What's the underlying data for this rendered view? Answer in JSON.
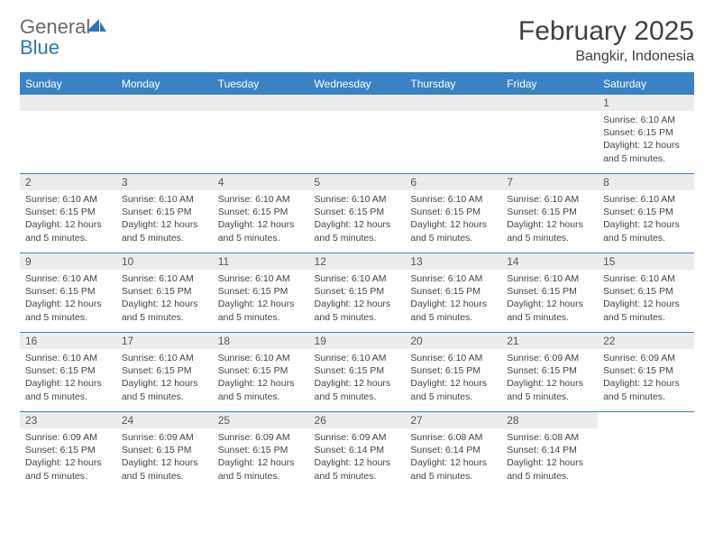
{
  "brand": {
    "word1": "General",
    "word2": "Blue",
    "word1_color": "#6a6a6a",
    "word2_color": "#2f77bb",
    "icon_color": "#2f77bb"
  },
  "title": "February 2025",
  "location": "Bangkir, Indonesia",
  "colors": {
    "header_bg": "#3b82c4",
    "header_text": "#ffffff",
    "daynum_bg": "#ececec",
    "border": "#3b82c4",
    "body_text": "#444444"
  },
  "weekdays": [
    "Sunday",
    "Monday",
    "Tuesday",
    "Wednesday",
    "Thursday",
    "Friday",
    "Saturday"
  ],
  "weeks": [
    [
      {
        "empty": true
      },
      {
        "empty": true
      },
      {
        "empty": true
      },
      {
        "empty": true
      },
      {
        "empty": true
      },
      {
        "empty": true
      },
      {
        "num": "1",
        "sunrise": "Sunrise: 6:10 AM",
        "sunset": "Sunset: 6:15 PM",
        "daylight1": "Daylight: 12 hours",
        "daylight2": "and 5 minutes."
      }
    ],
    [
      {
        "num": "2",
        "sunrise": "Sunrise: 6:10 AM",
        "sunset": "Sunset: 6:15 PM",
        "daylight1": "Daylight: 12 hours",
        "daylight2": "and 5 minutes."
      },
      {
        "num": "3",
        "sunrise": "Sunrise: 6:10 AM",
        "sunset": "Sunset: 6:15 PM",
        "daylight1": "Daylight: 12 hours",
        "daylight2": "and 5 minutes."
      },
      {
        "num": "4",
        "sunrise": "Sunrise: 6:10 AM",
        "sunset": "Sunset: 6:15 PM",
        "daylight1": "Daylight: 12 hours",
        "daylight2": "and 5 minutes."
      },
      {
        "num": "5",
        "sunrise": "Sunrise: 6:10 AM",
        "sunset": "Sunset: 6:15 PM",
        "daylight1": "Daylight: 12 hours",
        "daylight2": "and 5 minutes."
      },
      {
        "num": "6",
        "sunrise": "Sunrise: 6:10 AM",
        "sunset": "Sunset: 6:15 PM",
        "daylight1": "Daylight: 12 hours",
        "daylight2": "and 5 minutes."
      },
      {
        "num": "7",
        "sunrise": "Sunrise: 6:10 AM",
        "sunset": "Sunset: 6:15 PM",
        "daylight1": "Daylight: 12 hours",
        "daylight2": "and 5 minutes."
      },
      {
        "num": "8",
        "sunrise": "Sunrise: 6:10 AM",
        "sunset": "Sunset: 6:15 PM",
        "daylight1": "Daylight: 12 hours",
        "daylight2": "and 5 minutes."
      }
    ],
    [
      {
        "num": "9",
        "sunrise": "Sunrise: 6:10 AM",
        "sunset": "Sunset: 6:15 PM",
        "daylight1": "Daylight: 12 hours",
        "daylight2": "and 5 minutes."
      },
      {
        "num": "10",
        "sunrise": "Sunrise: 6:10 AM",
        "sunset": "Sunset: 6:15 PM",
        "daylight1": "Daylight: 12 hours",
        "daylight2": "and 5 minutes."
      },
      {
        "num": "11",
        "sunrise": "Sunrise: 6:10 AM",
        "sunset": "Sunset: 6:15 PM",
        "daylight1": "Daylight: 12 hours",
        "daylight2": "and 5 minutes."
      },
      {
        "num": "12",
        "sunrise": "Sunrise: 6:10 AM",
        "sunset": "Sunset: 6:15 PM",
        "daylight1": "Daylight: 12 hours",
        "daylight2": "and 5 minutes."
      },
      {
        "num": "13",
        "sunrise": "Sunrise: 6:10 AM",
        "sunset": "Sunset: 6:15 PM",
        "daylight1": "Daylight: 12 hours",
        "daylight2": "and 5 minutes."
      },
      {
        "num": "14",
        "sunrise": "Sunrise: 6:10 AM",
        "sunset": "Sunset: 6:15 PM",
        "daylight1": "Daylight: 12 hours",
        "daylight2": "and 5 minutes."
      },
      {
        "num": "15",
        "sunrise": "Sunrise: 6:10 AM",
        "sunset": "Sunset: 6:15 PM",
        "daylight1": "Daylight: 12 hours",
        "daylight2": "and 5 minutes."
      }
    ],
    [
      {
        "num": "16",
        "sunrise": "Sunrise: 6:10 AM",
        "sunset": "Sunset: 6:15 PM",
        "daylight1": "Daylight: 12 hours",
        "daylight2": "and 5 minutes."
      },
      {
        "num": "17",
        "sunrise": "Sunrise: 6:10 AM",
        "sunset": "Sunset: 6:15 PM",
        "daylight1": "Daylight: 12 hours",
        "daylight2": "and 5 minutes."
      },
      {
        "num": "18",
        "sunrise": "Sunrise: 6:10 AM",
        "sunset": "Sunset: 6:15 PM",
        "daylight1": "Daylight: 12 hours",
        "daylight2": "and 5 minutes."
      },
      {
        "num": "19",
        "sunrise": "Sunrise: 6:10 AM",
        "sunset": "Sunset: 6:15 PM",
        "daylight1": "Daylight: 12 hours",
        "daylight2": "and 5 minutes."
      },
      {
        "num": "20",
        "sunrise": "Sunrise: 6:10 AM",
        "sunset": "Sunset: 6:15 PM",
        "daylight1": "Daylight: 12 hours",
        "daylight2": "and 5 minutes."
      },
      {
        "num": "21",
        "sunrise": "Sunrise: 6:09 AM",
        "sunset": "Sunset: 6:15 PM",
        "daylight1": "Daylight: 12 hours",
        "daylight2": "and 5 minutes."
      },
      {
        "num": "22",
        "sunrise": "Sunrise: 6:09 AM",
        "sunset": "Sunset: 6:15 PM",
        "daylight1": "Daylight: 12 hours",
        "daylight2": "and 5 minutes."
      }
    ],
    [
      {
        "num": "23",
        "sunrise": "Sunrise: 6:09 AM",
        "sunset": "Sunset: 6:15 PM",
        "daylight1": "Daylight: 12 hours",
        "daylight2": "and 5 minutes."
      },
      {
        "num": "24",
        "sunrise": "Sunrise: 6:09 AM",
        "sunset": "Sunset: 6:15 PM",
        "daylight1": "Daylight: 12 hours",
        "daylight2": "and 5 minutes."
      },
      {
        "num": "25",
        "sunrise": "Sunrise: 6:09 AM",
        "sunset": "Sunset: 6:15 PM",
        "daylight1": "Daylight: 12 hours",
        "daylight2": "and 5 minutes."
      },
      {
        "num": "26",
        "sunrise": "Sunrise: 6:09 AM",
        "sunset": "Sunset: 6:14 PM",
        "daylight1": "Daylight: 12 hours",
        "daylight2": "and 5 minutes."
      },
      {
        "num": "27",
        "sunrise": "Sunrise: 6:08 AM",
        "sunset": "Sunset: 6:14 PM",
        "daylight1": "Daylight: 12 hours",
        "daylight2": "and 5 minutes."
      },
      {
        "num": "28",
        "sunrise": "Sunrise: 6:08 AM",
        "sunset": "Sunset: 6:14 PM",
        "daylight1": "Daylight: 12 hours",
        "daylight2": "and 5 minutes."
      },
      {
        "empty": true,
        "noBand": true
      }
    ]
  ]
}
